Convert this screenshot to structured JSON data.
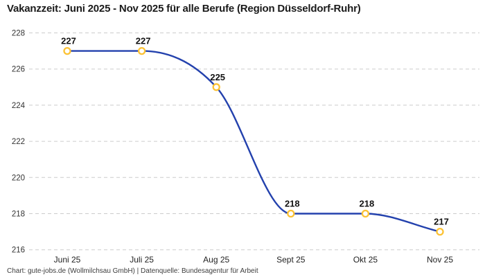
{
  "header": {
    "title": "Vakanzzeit: Juni 2025 - Nov 2025 für alle Berufe (Region Düsseldorf-Ruhr)"
  },
  "footer": {
    "credit": "Chart: gute-jobs.de (Wollmilchsau GmbH) | Datenquelle: Bundesagentur für Arbeit"
  },
  "chart_data": {
    "type": "line",
    "title": "Vakanzzeit: Juni 2025 - Nov 2025 für alle Berufe (Region Düsseldorf-Ruhr)",
    "categories": [
      "Juni 25",
      "Juli 25",
      "Aug 25",
      "Sept 25",
      "Okt 25",
      "Nov 25"
    ],
    "series": [
      {
        "name": "Vakanzzeit",
        "values": [
          227,
          227,
          225,
          218,
          218,
          217
        ]
      }
    ],
    "data_labels": [
      "227",
      "227",
      "225",
      "218",
      "218",
      "217"
    ],
    "xlabel": "",
    "ylabel": "",
    "ylim": [
      216,
      228
    ],
    "ytick_step": 2,
    "yticks": [
      216,
      218,
      220,
      222,
      224,
      226,
      228
    ],
    "grid": "horizontal-dashed",
    "legend_position": "none",
    "curve": "monotone",
    "colors": {
      "line": "#2341ad",
      "marker_fill": "#ffffff",
      "marker_stroke": "#fcc234",
      "grid": "#cccccc",
      "tick_text": "#333333",
      "axis_text": "#222222",
      "data_label": "#111111",
      "title": "#1a1a1a",
      "background": "#ffffff"
    }
  }
}
